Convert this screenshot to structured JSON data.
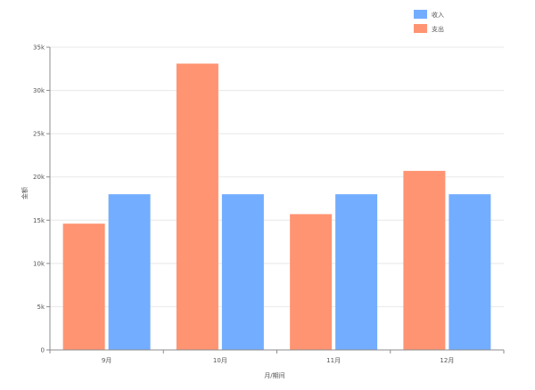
{
  "chart_data": {
    "type": "bar",
    "categories": [
      "9月",
      "10月",
      "11月",
      "12月"
    ],
    "series": [
      {
        "name": "支出",
        "color": "#ff9472",
        "values": [
          14600,
          33100,
          15700,
          20700
        ]
      },
      {
        "name": "收入",
        "color": "#73adff",
        "values": [
          18000,
          18000,
          18000,
          18000
        ]
      }
    ],
    "legend": [
      {
        "name": "收入",
        "color": "#73adff"
      },
      {
        "name": "支出",
        "color": "#ff9472"
      }
    ],
    "legend_position": "top-right",
    "ylim": [
      0,
      35000
    ],
    "yticks": [
      0,
      5000,
      10000,
      15000,
      20000,
      25000,
      30000,
      35000
    ],
    "ytick_labels": [
      "0",
      "5k",
      "10k",
      "15k",
      "20k",
      "25k",
      "30k",
      "35k"
    ],
    "xlabel": "月/期间",
    "ylabel": "金额",
    "grid": true
  }
}
